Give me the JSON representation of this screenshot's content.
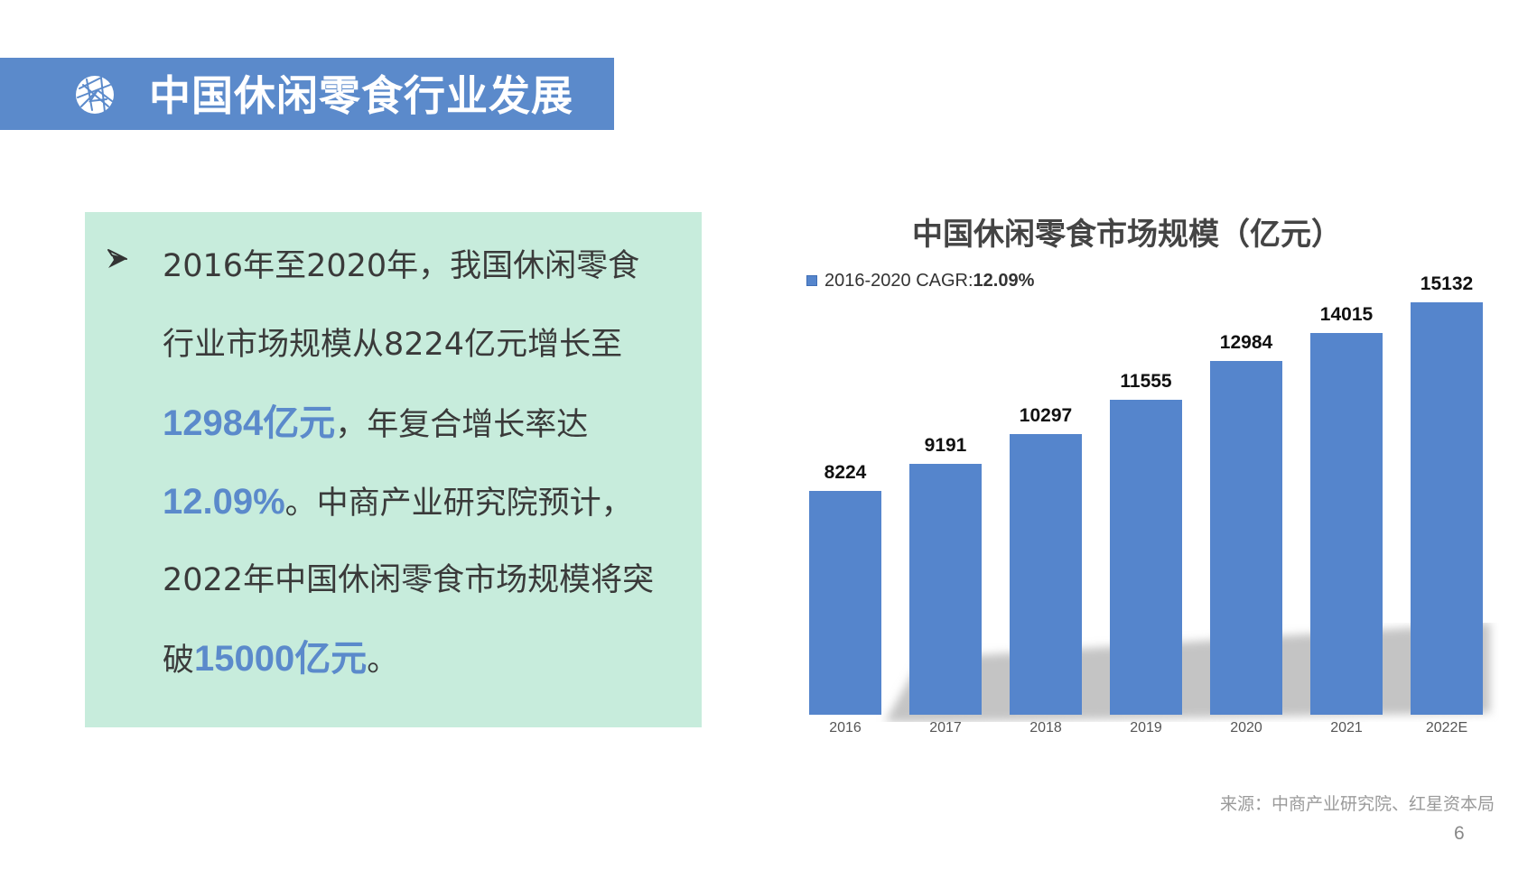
{
  "header": {
    "title": "中国休闲零食行业发展",
    "icon": "globe-network-icon",
    "band_color": "#5b8acb"
  },
  "summary": {
    "bullet_icon": "arrowhead-bullet-icon",
    "panel_color": "#c7ecdc",
    "lines": [
      [
        {
          "text": "2016年至2020年，我国休闲零食",
          "highlight": false
        }
      ],
      [
        {
          "text": "行业市场规模从8224亿元增长至",
          "highlight": false
        }
      ],
      [
        {
          "text": "12984亿元",
          "highlight": true
        },
        {
          "text": "，年复合增长率达",
          "highlight": false
        }
      ],
      [
        {
          "text": "12.09%",
          "highlight": true
        },
        {
          "text": "。中商产业研究院预计，",
          "highlight": false
        }
      ],
      [
        {
          "text": "2022年中国休闲零食市场规模将突",
          "highlight": false
        }
      ],
      [
        {
          "text": "破",
          "highlight": false
        },
        {
          "text": "15000亿元",
          "highlight": true
        },
        {
          "text": "。",
          "highlight": false
        }
      ]
    ],
    "highlight_color": "#5b8acb"
  },
  "chart_data": {
    "type": "bar",
    "title": "中国休闲零食市场规模（亿元）",
    "legend": {
      "label": "2016-2020 CAGR:",
      "value": "12.09%",
      "position": "top-left"
    },
    "categories": [
      "2016",
      "2017",
      "2018",
      "2019",
      "2020",
      "2021",
      "2022E"
    ],
    "values": [
      8224,
      9191,
      10297,
      11555,
      12984,
      14015,
      15132
    ],
    "xlabel": "",
    "ylabel": "",
    "ylim": [
      0,
      16000
    ],
    "grid": false,
    "y_axis_visible": false,
    "data_labels": true,
    "bar_color": "#5585cc",
    "shadow": true
  },
  "footer": {
    "source": "来源：中商产业研究院、红星资本局",
    "page_number": "6"
  }
}
